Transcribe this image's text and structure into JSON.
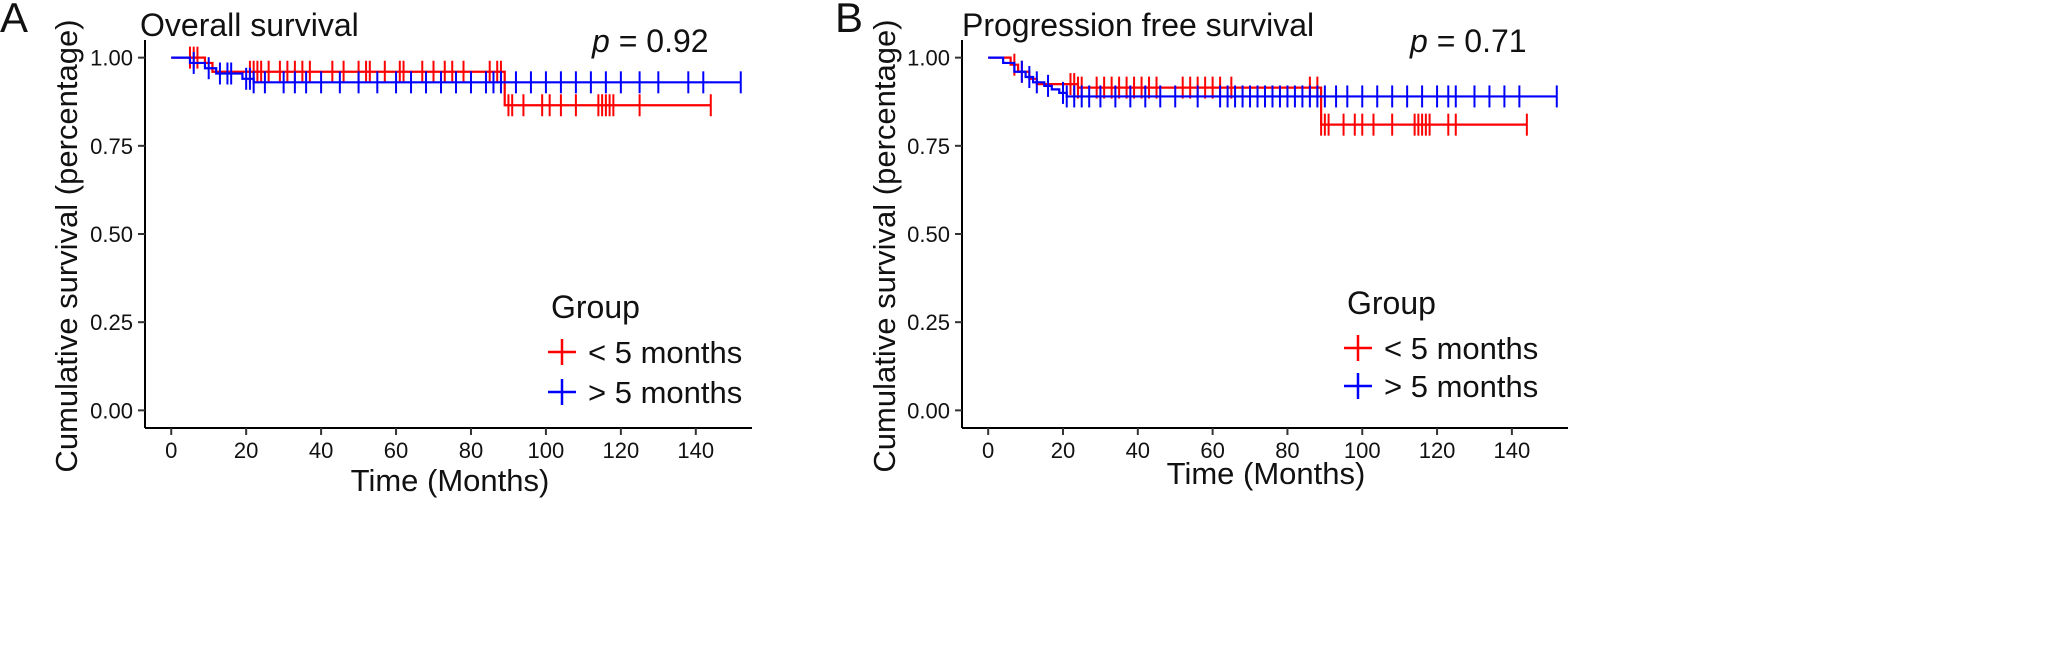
{
  "chart_data": [
    {
      "type": "line",
      "panel": "A",
      "title": "Overall survival",
      "annotation": {
        "prefix": "p",
        "text": " = 0.92"
      },
      "xlabel": "Time (Months)",
      "ylabel": "Cumulative survival (percentage)",
      "xlim": [
        -7,
        155
      ],
      "ylim": [
        -0.05,
        1.05
      ],
      "xticks": [
        0,
        20,
        40,
        60,
        80,
        100,
        120,
        140
      ],
      "yticks": [
        0.0,
        0.25,
        0.5,
        0.75,
        1.0
      ],
      "ytick_labels": [
        "0.00",
        "0.25",
        "0.50",
        "0.75",
        "1.00"
      ],
      "grid": false,
      "legend": {
        "title": "Group",
        "position": "bottom-right"
      },
      "series": [
        {
          "name": "< 5 months",
          "color": "#ff0000",
          "steps": [
            [
              0,
              1.0
            ],
            [
              9,
              0.985
            ],
            [
              11,
              0.96
            ],
            [
              89,
              0.865
            ],
            [
              144,
              0.865
            ]
          ],
          "censor_times": [
            5,
            6,
            7,
            21,
            22,
            23,
            24,
            26,
            29,
            31,
            33,
            35,
            37,
            43,
            46,
            50,
            52,
            53,
            57,
            61,
            62,
            67,
            70,
            73,
            75,
            78,
            85,
            87,
            88,
            90,
            91,
            94,
            99,
            101,
            104,
            108,
            114,
            115,
            116,
            117,
            118,
            125,
            144
          ]
        },
        {
          "name": "> 5 months",
          "color": "#0000ff",
          "steps": [
            [
              0,
              1.0
            ],
            [
              5,
              0.985
            ],
            [
              9,
              0.97
            ],
            [
              12,
              0.955
            ],
            [
              19,
              0.94
            ],
            [
              22,
              0.93
            ],
            [
              152,
              0.93
            ]
          ],
          "censor_times": [
            6,
            10,
            13,
            15,
            16,
            20,
            21,
            22,
            25,
            30,
            33,
            36,
            40,
            45,
            50,
            55,
            60,
            64,
            68,
            72,
            76,
            80,
            84,
            86,
            88,
            92,
            96,
            100,
            104,
            108,
            112,
            116,
            120,
            125,
            130,
            138,
            142,
            152
          ]
        }
      ]
    },
    {
      "type": "line",
      "panel": "B",
      "title": "Progression free survival",
      "annotation": {
        "prefix": "p",
        "text": " = 0.71"
      },
      "xlabel": "Time (Months)",
      "ylabel": "Cumulative survival (percentage)",
      "xlim": [
        -7,
        155
      ],
      "ylim": [
        -0.05,
        1.05
      ],
      "xticks": [
        0,
        20,
        40,
        60,
        80,
        100,
        120,
        140
      ],
      "yticks": [
        0.0,
        0.25,
        0.5,
        0.75,
        1.0
      ],
      "ytick_labels": [
        "0.00",
        "0.25",
        "0.50",
        "0.75",
        "1.00"
      ],
      "grid": false,
      "legend": {
        "title": "Group",
        "position": "bottom-right"
      },
      "series": [
        {
          "name": "< 5 months",
          "color": "#ff0000",
          "steps": [
            [
              0,
              1.0
            ],
            [
              6,
              0.98
            ],
            [
              8,
              0.96
            ],
            [
              11,
              0.94
            ],
            [
              13,
              0.925
            ],
            [
              24,
              0.915
            ],
            [
              60,
              0.915
            ],
            [
              89,
              0.81
            ],
            [
              144,
              0.81
            ]
          ],
          "censor_times": [
            7,
            9,
            22,
            23,
            24,
            25,
            29,
            31,
            33,
            35,
            37,
            39,
            41,
            43,
            45,
            52,
            54,
            56,
            58,
            60,
            62,
            65,
            86,
            88,
            89,
            90,
            91,
            95,
            98,
            100,
            103,
            108,
            114,
            115,
            116,
            117,
            118,
            123,
            125,
            144
          ]
        },
        {
          "name": "> 5 months",
          "color": "#0000ff",
          "steps": [
            [
              0,
              1.0
            ],
            [
              4,
              0.985
            ],
            [
              7,
              0.96
            ],
            [
              10,
              0.945
            ],
            [
              12,
              0.93
            ],
            [
              15,
              0.92
            ],
            [
              17,
              0.91
            ],
            [
              19,
              0.9
            ],
            [
              21,
              0.89
            ],
            [
              152,
              0.89
            ]
          ],
          "censor_times": [
            9,
            11,
            13,
            16,
            20,
            21,
            23,
            25,
            27,
            30,
            34,
            38,
            42,
            46,
            50,
            56,
            62,
            64,
            66,
            68,
            70,
            72,
            74,
            76,
            78,
            80,
            82,
            84,
            86,
            88,
            90,
            93,
            96,
            100,
            104,
            108,
            112,
            116,
            120,
            123,
            125,
            130,
            134,
            138,
            142,
            152
          ]
        }
      ]
    }
  ]
}
